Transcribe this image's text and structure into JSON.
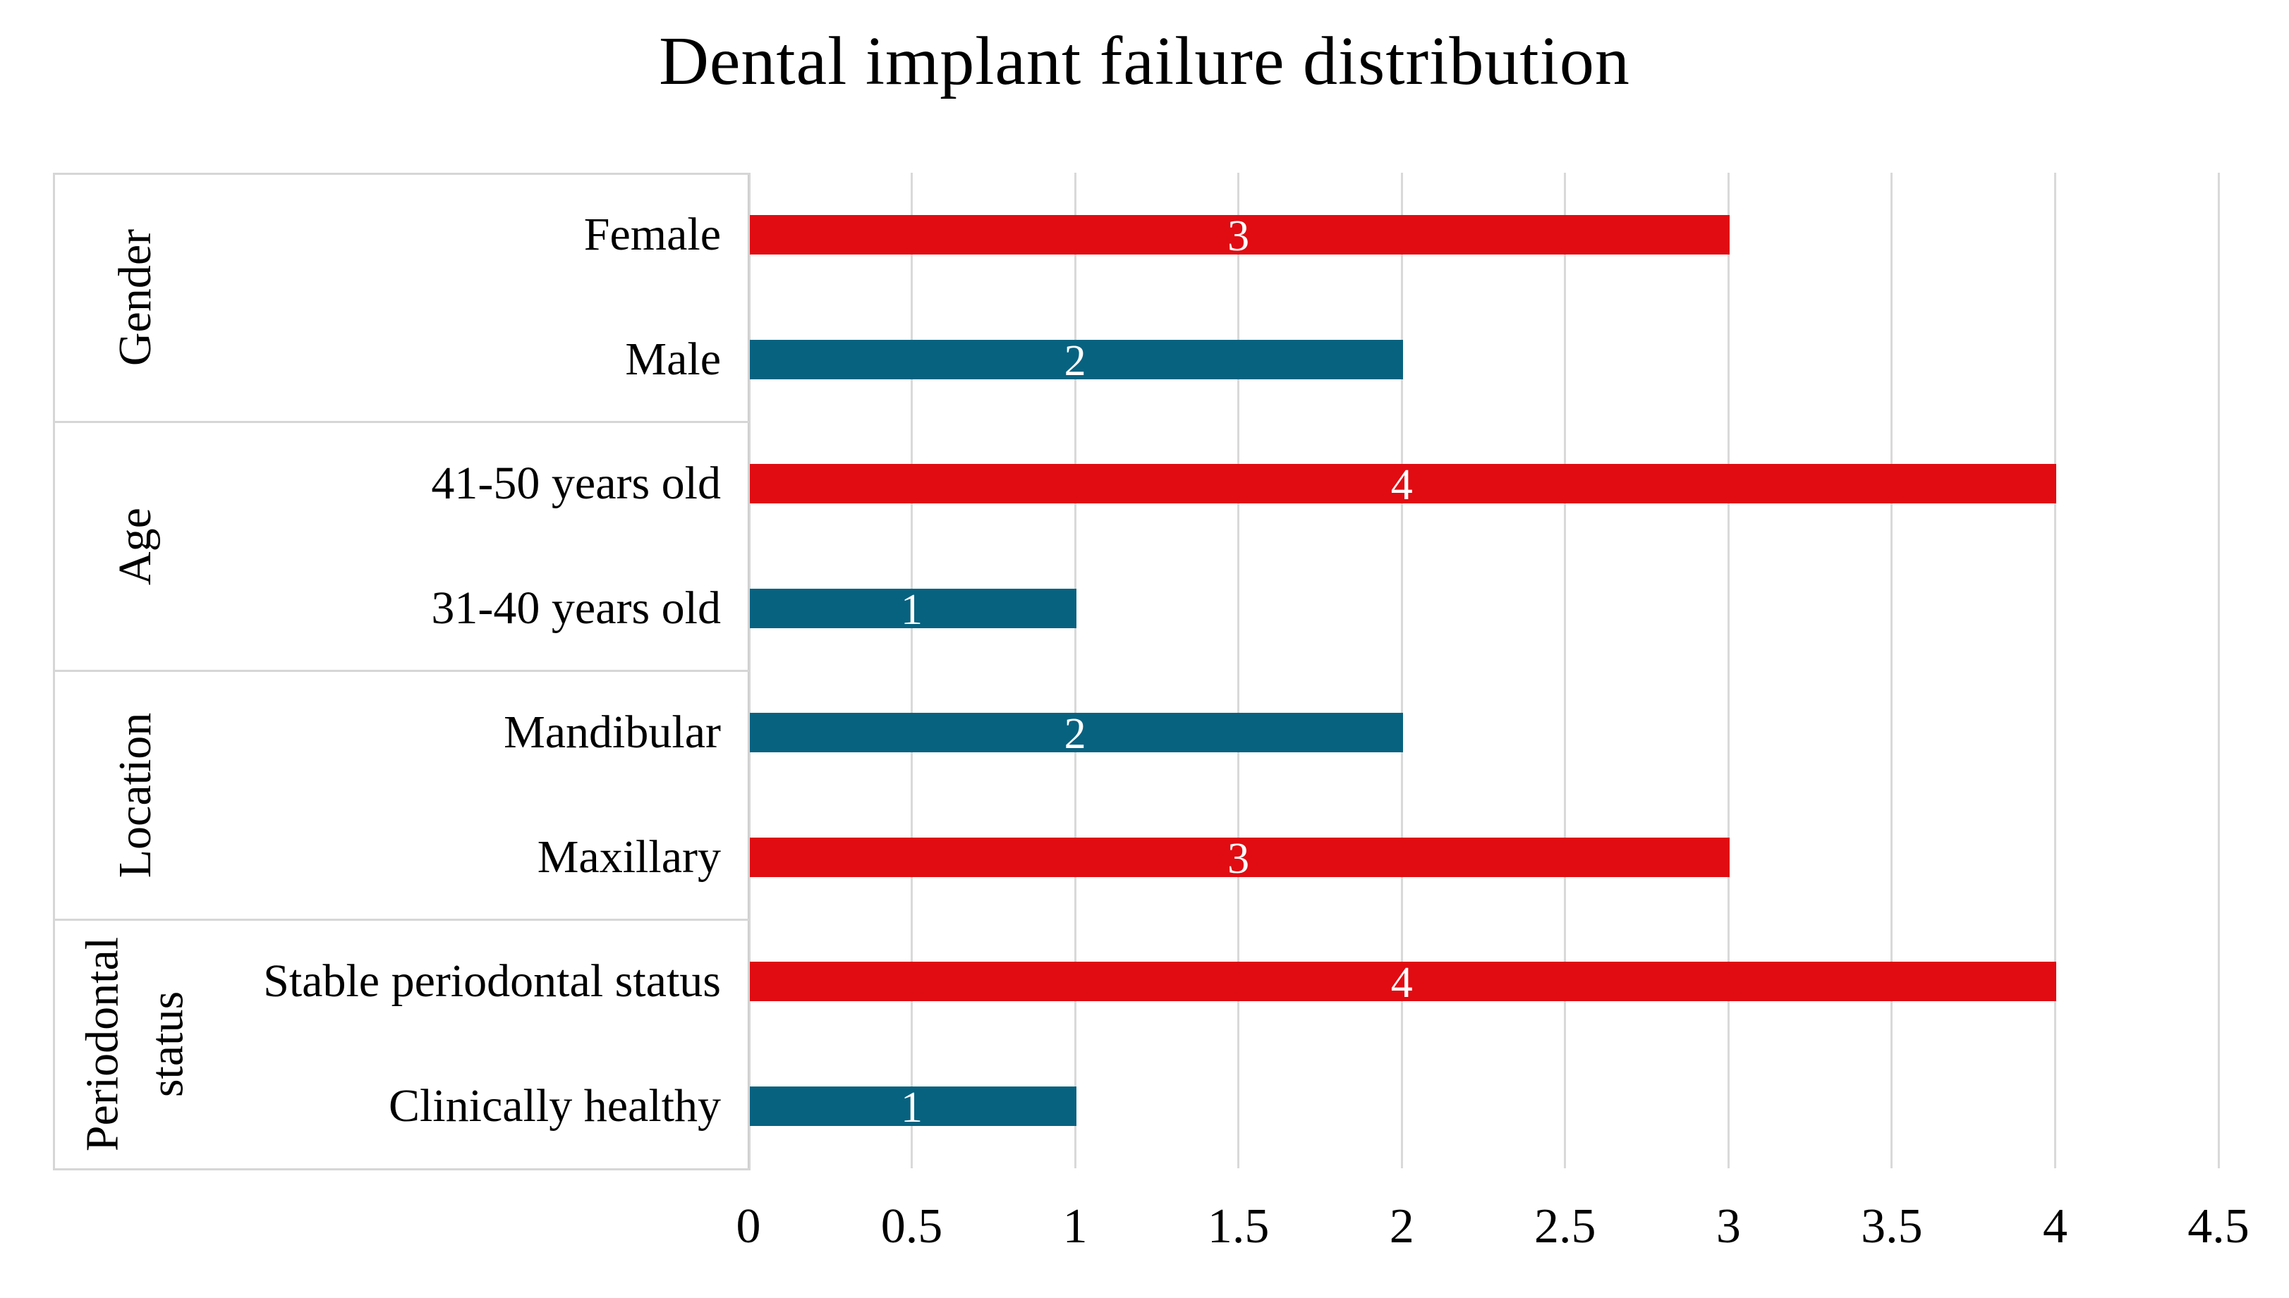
{
  "title": "Dental implant failure distribution",
  "chart_data": {
    "type": "bar",
    "orientation": "horizontal",
    "title": "Dental implant failure distribution",
    "xlabel": "",
    "ylabel": "",
    "xlim": [
      0,
      4.5
    ],
    "grid": true,
    "legend": false,
    "x_ticks": [
      0,
      0.5,
      1,
      1.5,
      2,
      2.5,
      3,
      3.5,
      4,
      4.5
    ],
    "x_tick_labels": [
      "0",
      "0.5",
      "1",
      "1.5",
      "2",
      "2.5",
      "3",
      "3.5",
      "4",
      "4.5"
    ],
    "groups": [
      {
        "label": "Gender",
        "items": [
          {
            "label": "Female",
            "value": 3,
            "value_label": "3",
            "color": "#e00c12"
          },
          {
            "label": "Male",
            "value": 2,
            "value_label": "2",
            "color": "#076280"
          }
        ]
      },
      {
        "label": "Age",
        "items": [
          {
            "label": "41-50 years old",
            "value": 4,
            "value_label": "4",
            "color": "#e00c12"
          },
          {
            "label": "31-40 years old",
            "value": 1,
            "value_label": "1",
            "color": "#076280"
          }
        ]
      },
      {
        "label": "Location",
        "items": [
          {
            "label": "Mandibular",
            "value": 2,
            "value_label": "2",
            "color": "#076280"
          },
          {
            "label": "Maxillary",
            "value": 3,
            "value_label": "3",
            "color": "#e00c12"
          }
        ]
      },
      {
        "label": "Periodontal\nstatus",
        "items": [
          {
            "label": "Stable periodontal status",
            "value": 4,
            "value_label": "4",
            "color": "#e00c12"
          },
          {
            "label": "Clinically healthy",
            "value": 1,
            "value_label": "1",
            "color": "#076280"
          }
        ]
      }
    ],
    "colors": {
      "larger_series": "#e00c12",
      "smaller_series": "#076280"
    },
    "value_label_color": "#ffffff",
    "gridline_color": "#d9d9d9",
    "panel_border_color": "#d6d6d6",
    "text_color": "#000000"
  }
}
